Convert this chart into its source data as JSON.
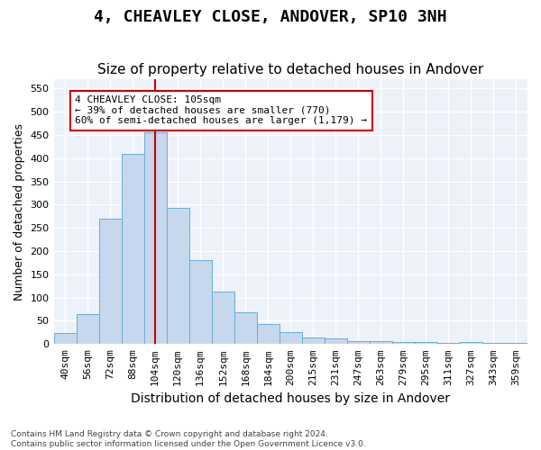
{
  "title": "4, CHEAVLEY CLOSE, ANDOVER, SP10 3NH",
  "subtitle": "Size of property relative to detached houses in Andover",
  "xlabel": "Distribution of detached houses by size in Andover",
  "ylabel": "Number of detached properties",
  "categories": [
    "40sqm",
    "56sqm",
    "72sqm",
    "88sqm",
    "104sqm",
    "120sqm",
    "136sqm",
    "152sqm",
    "168sqm",
    "184sqm",
    "200sqm",
    "215sqm",
    "231sqm",
    "247sqm",
    "263sqm",
    "279sqm",
    "295sqm",
    "311sqm",
    "327sqm",
    "343sqm",
    "359sqm"
  ],
  "values": [
    23,
    65,
    270,
    410,
    455,
    293,
    180,
    113,
    68,
    43,
    25,
    15,
    12,
    7,
    7,
    5,
    5,
    3,
    5,
    3,
    3
  ],
  "bar_color": "#c5d8ed",
  "bar_edge_color": "#6aaed6",
  "vline_x": 4,
  "vline_color": "#cc0000",
  "annotation_line1": "4 CHEAVLEY CLOSE: 105sqm",
  "annotation_line2": "← 39% of detached houses are smaller (770)",
  "annotation_line3": "60% of semi-detached houses are larger (1,179) →",
  "annotation_box_color": "#ffffff",
  "annotation_box_edge_color": "#cc0000",
  "ylim": [
    0,
    570
  ],
  "yticks": [
    0,
    50,
    100,
    150,
    200,
    250,
    300,
    350,
    400,
    450,
    500,
    550
  ],
  "background_color": "#edf1f9",
  "grid_color": "#ffffff",
  "footnote": "Contains HM Land Registry data © Crown copyright and database right 2024.\nContains public sector information licensed under the Open Government Licence v3.0.",
  "title_fontsize": 13,
  "subtitle_fontsize": 11,
  "xlabel_fontsize": 10,
  "ylabel_fontsize": 9,
  "tick_fontsize": 8
}
